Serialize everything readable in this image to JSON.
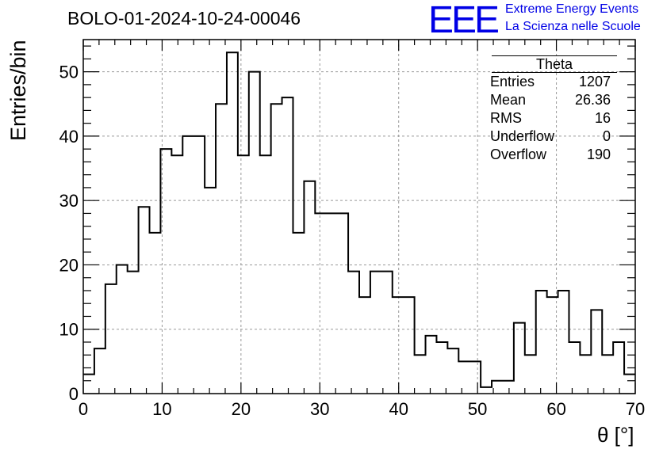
{
  "header": {
    "run_title": "BOLO-01-2024-10-24-00046",
    "logo_text": "EEE",
    "logo_line1": "Extreme Energy Events",
    "logo_line2": "La Scienza nelle Scuole",
    "logo_color": "#0000e6"
  },
  "stats_box": {
    "title": "Theta",
    "rows": [
      {
        "label": "Entries",
        "value": "1207"
      },
      {
        "label": "Mean",
        "value": "26.36"
      },
      {
        "label": "RMS",
        "value": "16"
      },
      {
        "label": "Underflow",
        "value": "0"
      },
      {
        "label": "Overflow",
        "value": "190"
      }
    ]
  },
  "chart_data": {
    "type": "histogram",
    "title": "BOLO-01-2024-10-24-00046",
    "xlabel": "θ [°]",
    "ylabel": "Entries/bin",
    "xlim": [
      0,
      70
    ],
    "ylim": [
      0,
      55
    ],
    "bin_width": 1.4,
    "x_ticks": [
      0,
      10,
      20,
      30,
      40,
      50,
      60,
      70
    ],
    "y_ticks": [
      0,
      10,
      20,
      30,
      40,
      50
    ],
    "grid": true,
    "values": [
      3,
      7,
      17,
      20,
      19,
      29,
      25,
      38,
      37,
      40,
      40,
      32,
      45,
      53,
      37,
      50,
      37,
      45,
      46,
      25,
      33,
      28,
      28,
      28,
      19,
      15,
      19,
      19,
      15,
      15,
      6,
      9,
      8,
      7,
      5,
      5,
      1,
      2,
      2,
      11,
      6,
      16,
      15,
      16,
      8,
      6,
      13,
      6,
      8,
      3
    ],
    "line_color": "#000000"
  }
}
